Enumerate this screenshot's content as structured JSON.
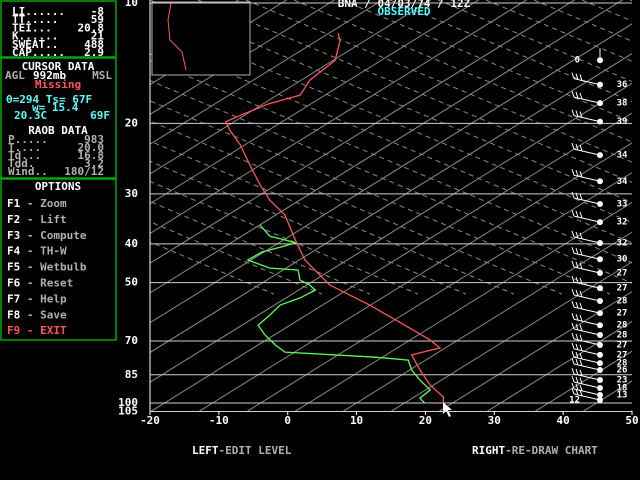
{
  "header": {
    "title": "BNA / 04/03/74 / 12Z",
    "status": "OBSERVED"
  },
  "sidebar": {
    "indices": [
      {
        "label": "LI......",
        "value": "-8"
      },
      {
        "label": "TT.....",
        "value": "59"
      },
      {
        "label": "TEI...",
        "value": "20.8"
      },
      {
        "label": "K......",
        "value": "21"
      },
      {
        "label": "SWEAT..",
        "value": "488"
      },
      {
        "label": "CAP.....",
        "value": "2.9"
      }
    ],
    "cursor": {
      "title": "CURSOR DATA",
      "agl": "AGL",
      "level": "992mb",
      "msl": "MSL",
      "status": "Missing",
      "theta": "θ=294 Ts= 67F",
      "mixing": "w= 15.4",
      "temp_c": "20.3C",
      "temp_f": "69F"
    },
    "raob": {
      "title": "RAOB DATA",
      "rows": [
        {
          "label": "P.....",
          "value": "983"
        },
        {
          "label": "T....",
          "value": "20.0"
        },
        {
          "label": "Td...",
          "value": "16.8"
        },
        {
          "label": "Tdd.",
          "value": "3.2"
        },
        {
          "label": "Wind..",
          "value": "180/12"
        }
      ]
    },
    "options": {
      "title": "OPTIONS",
      "items": [
        {
          "key": "F1",
          "label": "- Zoom",
          "key_color": "#ffffff",
          "label_color": "#b0b0b0"
        },
        {
          "key": "F2",
          "label": "- Lift",
          "key_color": "#ffffff",
          "label_color": "#b0b0b0"
        },
        {
          "key": "F3",
          "label": "- Compute",
          "key_color": "#ffffff",
          "label_color": "#b0b0b0"
        },
        {
          "key": "F4",
          "label": "- TH-W",
          "key_color": "#ffffff",
          "label_color": "#b0b0b0"
        },
        {
          "key": "F5",
          "label": "- Wetbulb",
          "key_color": "#ffffff",
          "label_color": "#b0b0b0"
        },
        {
          "key": "F6",
          "label": "- Reset",
          "key_color": "#ffffff",
          "label_color": "#b0b0b0"
        },
        {
          "key": "F7",
          "label": "- Help",
          "key_color": "#ffffff",
          "label_color": "#b0b0b0"
        },
        {
          "key": "F8",
          "label": "- Save",
          "key_color": "#ffffff",
          "label_color": "#b0b0b0"
        },
        {
          "key": "F9",
          "label": "- EXIT",
          "key_color": "#ff5555",
          "label_color": "#ff5555"
        }
      ]
    }
  },
  "footer": {
    "left": {
      "key": "LEFT",
      "text": "-EDIT LEVEL"
    },
    "right": {
      "key": "RIGHT",
      "text": "-RE-DRAW CHART"
    }
  },
  "chart_data": {
    "type": "skewt",
    "ylog": true,
    "ylim": [
      10,
      105
    ],
    "yticks": [
      10,
      20,
      30,
      40,
      50,
      70,
      85,
      100,
      105
    ],
    "xlim": [
      -20,
      50
    ],
    "xticks": [
      -20,
      -10,
      0,
      10,
      20,
      30,
      40,
      50
    ],
    "grid": true,
    "series": [
      {
        "color": "#ff5555",
        "x": [
          7.3,
          7.6,
          6.9,
          3.2,
          1.8,
          -2.9,
          -6.9,
          -9.0,
          -8.4,
          -6.9,
          -5.5,
          -4.0,
          -2.6,
          -0.4,
          1.1,
          2.5,
          6.1,
          11.9,
          17.0,
          20.7,
          22.1,
          18.0,
          19.2,
          20.7,
          22.6,
          22.6
        ],
        "y": [
          11.9,
          12.4,
          13.9,
          15.6,
          17.0,
          17.9,
          19.1,
          19.8,
          20.8,
          22.6,
          25.4,
          28.5,
          31.1,
          33.9,
          39.1,
          43.9,
          50.7,
          56.9,
          63.9,
          69.6,
          72.8,
          75.8,
          82.7,
          90.2,
          96.6,
          100
        ]
      },
      {
        "color": "#55ff55",
        "x": [
          -4.0,
          -2.6,
          -0.4,
          1.1,
          -1.1,
          -3.7,
          -5.8,
          -2.6,
          1.5,
          1.8,
          3.2,
          4.0,
          1.8,
          -1.1,
          -2.6,
          -4.3,
          -3.3,
          -1.8,
          -0.4,
          12.7,
          17.5,
          18.0,
          19.2,
          20.7,
          19.2,
          19.9
        ],
        "y": [
          35.9,
          38.3,
          39.1,
          39.8,
          40.8,
          41.9,
          43.9,
          46.0,
          46.5,
          49.3,
          50.7,
          52.2,
          54.6,
          56.9,
          60.3,
          63.9,
          67.6,
          71.6,
          74.6,
          76.8,
          78.1,
          82.7,
          87.6,
          92.8,
          97.2,
          100
        ]
      }
    ],
    "wind": {
      "pressure": [
        13.9,
        16.0,
        17.8,
        19.8,
        24.0,
        27.9,
        31.8,
        35.3,
        39.8,
        43.7,
        47.3,
        51.6,
        55.6,
        59.6,
        63.9,
        67.6,
        71.6,
        75.8,
        79.5,
        82.7,
        87.6,
        91.7,
        95.5,
        98.3
      ],
      "speed": [
        0,
        36,
        38,
        39,
        34,
        34,
        33,
        32,
        32,
        30,
        27,
        27,
        28,
        27,
        28,
        28,
        27,
        27,
        28,
        26,
        23,
        18,
        13,
        12
      ]
    }
  }
}
